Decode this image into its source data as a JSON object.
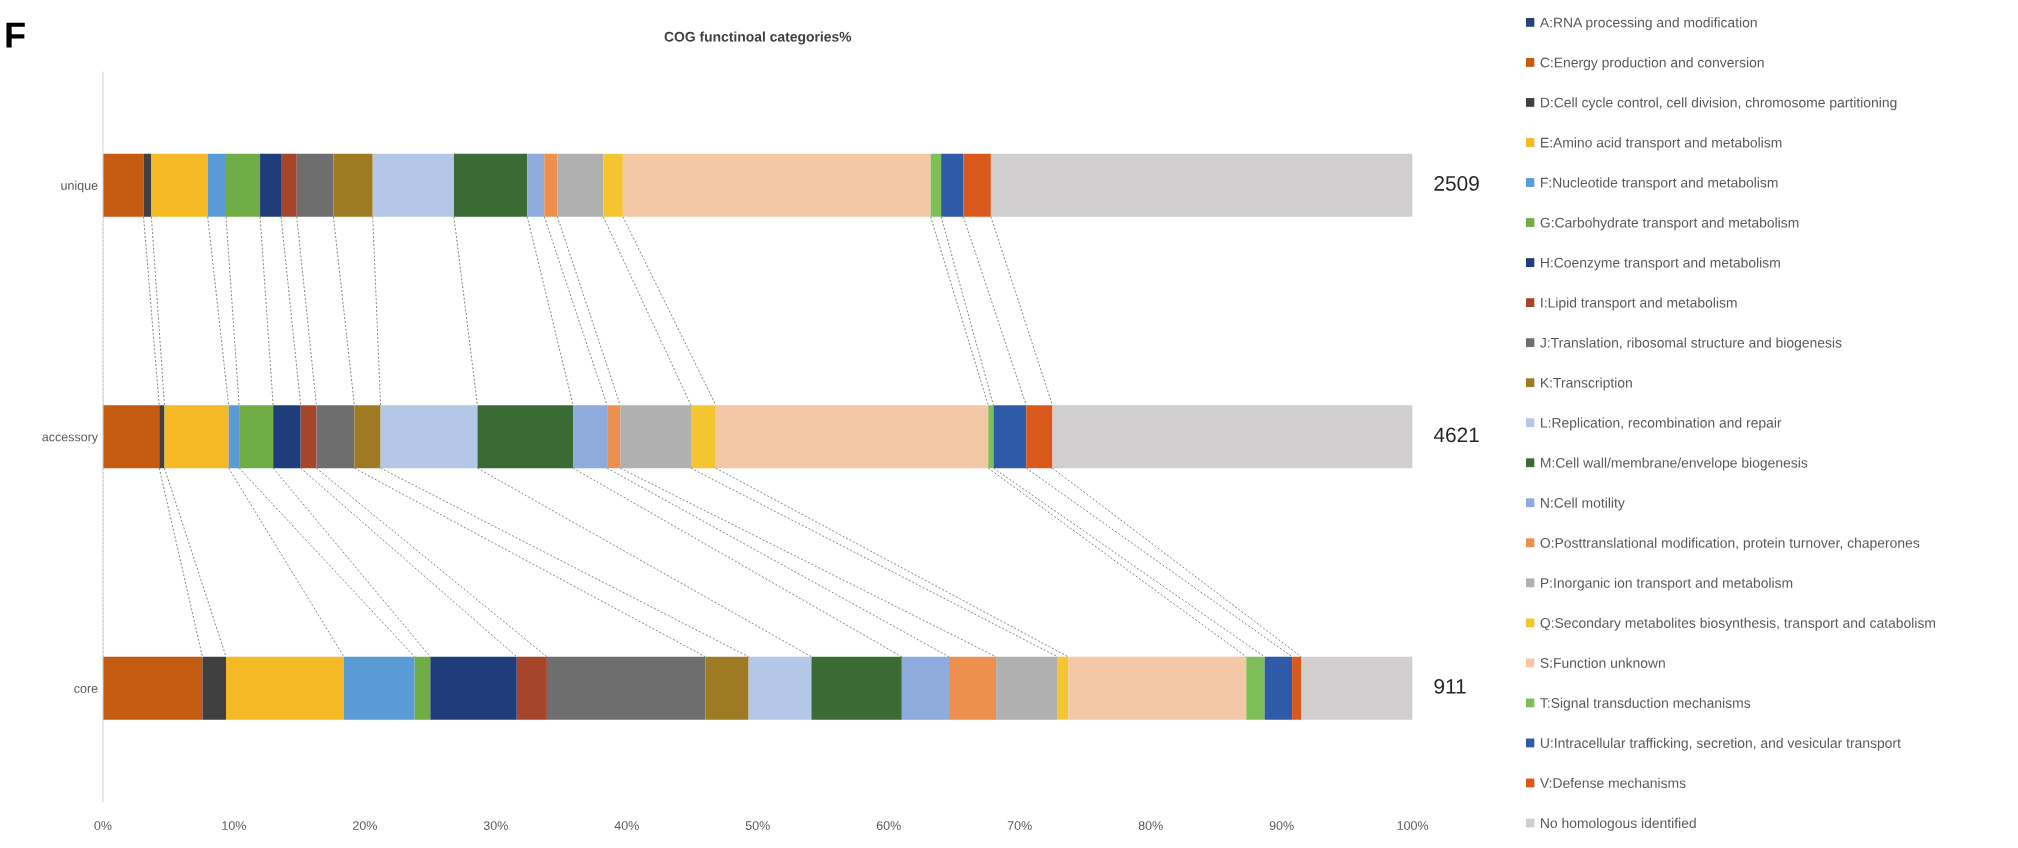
{
  "chart_data": {
    "type": "bar",
    "orientation": "horizontal",
    "stacked": true,
    "title": "COG functinoal categories%",
    "categories": [
      "unique",
      "accessory",
      "core"
    ],
    "series": [
      {
        "name": "A:RNA processing and modification",
        "color": "#264478",
        "values": [
          0,
          0,
          0
        ]
      },
      {
        "name": "C:Energy production and conversion",
        "color": "#c55a11",
        "values": [
          3.1,
          4.3,
          7.6
        ]
      },
      {
        "name": "D:Cell cycle control, cell division, chromosome partitioning",
        "color": "#404040",
        "values": [
          0.6,
          0.4,
          1.8
        ]
      },
      {
        "name": "E:Amino acid transport and metabolism",
        "color": "#f4b925",
        "values": [
          4.3,
          4.9,
          9.0
        ]
      },
      {
        "name": "F:Nucleotide transport and metabolism",
        "color": "#5b9bd5",
        "values": [
          1.4,
          0.8,
          5.4
        ]
      },
      {
        "name": "G:Carbohydrate transport and metabolism",
        "color": "#70ad47",
        "values": [
          2.6,
          2.6,
          1.2
        ]
      },
      {
        "name": "H:Coenzyme transport and metabolism",
        "color": "#1f3d7a",
        "values": [
          1.6,
          2.1,
          6.6
        ]
      },
      {
        "name": "I:Lipid transport and metabolism",
        "color": "#a5452a",
        "values": [
          1.2,
          1.2,
          2.3
        ]
      },
      {
        "name": "J:Translation, ribosomal structure and biogenesis",
        "color": "#6e6e6e",
        "values": [
          2.8,
          2.9,
          12.1
        ]
      },
      {
        "name": "K:Transcription",
        "color": "#9e7b23",
        "values": [
          3.0,
          2.0,
          3.3
        ]
      },
      {
        "name": "L:Replication, recombination and repair",
        "color": "#b4c7e7",
        "values": [
          6.2,
          7.4,
          4.8
        ]
      },
      {
        "name": "M:Cell wall/membrane/envelope biogenesis",
        "color": "#3a6b35",
        "values": [
          5.6,
          7.3,
          6.9
        ]
      },
      {
        "name": "N:Cell motility",
        "color": "#8faadc",
        "values": [
          1.3,
          2.6,
          3.6
        ]
      },
      {
        "name": "O:Posttranslational modification, protein turnover, chaperones",
        "color": "#ed8f4f",
        "values": [
          1.0,
          1.0,
          3.6
        ]
      },
      {
        "name": "P:Inorganic ion transport and metabolism",
        "color": "#b0b0b0",
        "values": [
          3.5,
          5.4,
          4.7
        ]
      },
      {
        "name": "Q:Secondary metabolites biosynthesis, transport and catabolism",
        "color": "#f5c431",
        "values": [
          1.5,
          1.9,
          0.8
        ]
      },
      {
        "name": "S:Function unknown",
        "color": "#f4c7a6",
        "values": [
          23.5,
          20.8,
          13.6
        ]
      },
      {
        "name": "T:Signal transduction mechanisms",
        "color": "#7fbf5a",
        "values": [
          0.8,
          0.4,
          1.4
        ]
      },
      {
        "name": "U:Intracellular trafficking, secretion, and vesicular transport",
        "color": "#2e5aa8",
        "values": [
          1.7,
          2.5,
          2.1
        ]
      },
      {
        "name": "V:Defense mechanisms",
        "color": "#d9581c",
        "values": [
          2.1,
          2.0,
          0.7
        ]
      },
      {
        "name": "No homologous identified",
        "color": "#d0cece",
        "values": [
          32.2,
          27.5,
          8.5
        ]
      }
    ],
    "xlim": [
      0,
      100
    ],
    "xticks": [
      {
        "value": 0,
        "label": "0%"
      },
      {
        "value": 10,
        "label": "10%"
      },
      {
        "value": 20,
        "label": "20%"
      },
      {
        "value": 30,
        "label": "30%"
      },
      {
        "value": 40,
        "label": "40%"
      },
      {
        "value": 50,
        "label": "50%"
      },
      {
        "value": 60,
        "label": "60%"
      },
      {
        "value": 70,
        "label": "70%"
      },
      {
        "value": 80,
        "label": "80%"
      },
      {
        "value": 90,
        "label": "90%"
      },
      {
        "value": 100,
        "label": "100%"
      }
    ],
    "grid": false,
    "legend": "right",
    "annotations": [
      "F",
      "2509",
      "4621",
      "911"
    ]
  }
}
